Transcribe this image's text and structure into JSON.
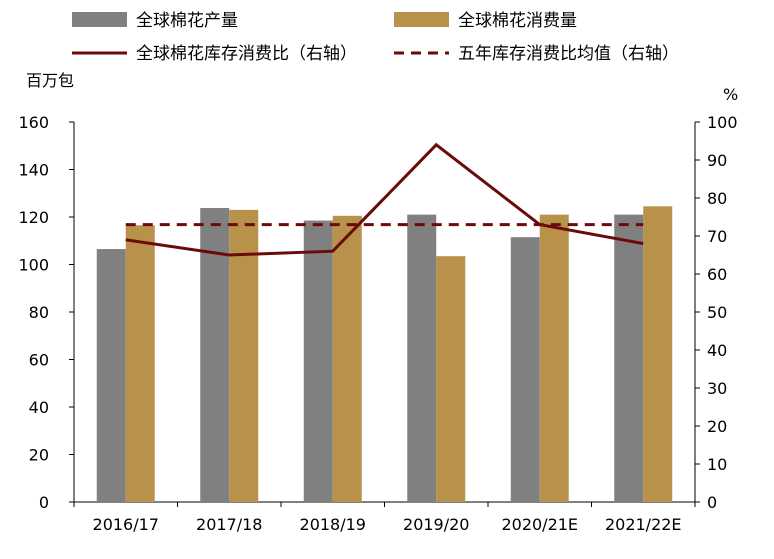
{
  "chart_data": {
    "type": "bar",
    "categories": [
      "2016/17",
      "2017/18",
      "2018/19",
      "2019/20",
      "2020/21E",
      "2021/22E"
    ],
    "series": [
      {
        "name": "全球棉花产量",
        "type": "bar",
        "axis": "left",
        "color": "#808080",
        "values": [
          106.5,
          123.8,
          118.5,
          121.0,
          111.5,
          121.0
        ]
      },
      {
        "name": "全球棉花消费量",
        "type": "bar",
        "axis": "left",
        "color": "#B8924A",
        "values": [
          116.5,
          123.0,
          120.5,
          103.5,
          121.0,
          124.5
        ]
      },
      {
        "name": "全球棉花库存消费比（右轴）",
        "type": "line",
        "axis": "right",
        "color": "#6B0A0A",
        "dash": "solid",
        "values": [
          69.0,
          65.0,
          66.0,
          94.0,
          73.0,
          68.0
        ]
      },
      {
        "name": "五年库存消费比均值（右轴）",
        "type": "line",
        "axis": "right",
        "color": "#6B0A0A",
        "dash": "dashed",
        "values": [
          73.0,
          73.0,
          73.0,
          73.0,
          73.0,
          73.0
        ]
      }
    ],
    "ylabel": "百万包",
    "y2label": "%",
    "ylim": [
      0,
      160
    ],
    "y2lim": [
      0,
      100
    ],
    "yticks": [
      0,
      20,
      40,
      60,
      80,
      100,
      120,
      140,
      160
    ],
    "y2ticks": [
      0,
      10,
      20,
      30,
      40,
      50,
      60,
      70,
      80,
      90,
      100
    ],
    "grid": false,
    "legend_position": "top"
  }
}
